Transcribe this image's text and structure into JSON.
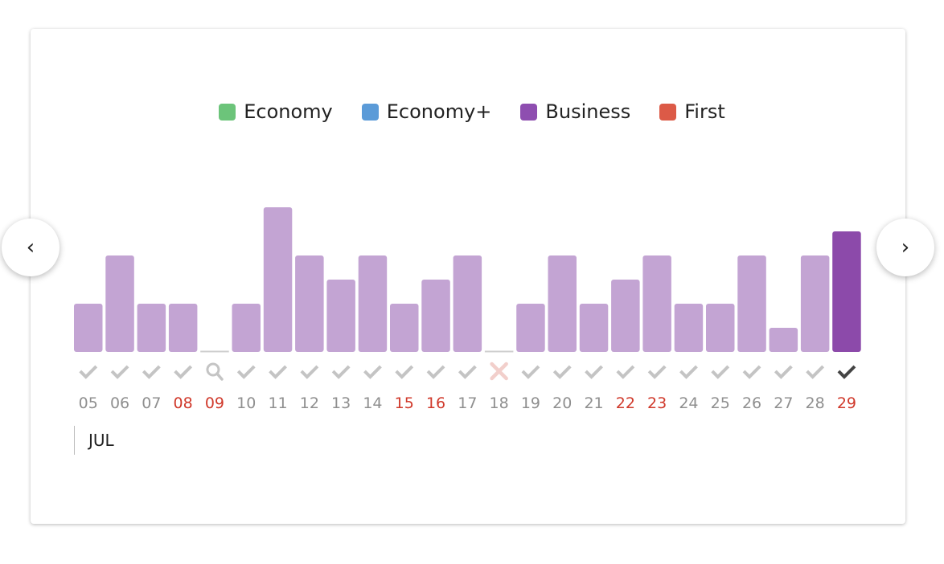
{
  "legend": [
    {
      "label": "Economy",
      "color": "#6cc47a"
    },
    {
      "label": "Economy+",
      "color": "#5b9bd8"
    },
    {
      "label": "Business",
      "color": "#8e4eb0"
    },
    {
      "label": "First",
      "color": "#dc5a47"
    }
  ],
  "nav": {
    "prev_icon": "chevron-left-icon",
    "next_icon": "chevron-right-icon",
    "prev_glyph": "‹",
    "next_glyph": "›"
  },
  "month_label": "JUL",
  "colors": {
    "bar": "#c3a4d3",
    "bar_selected": "#8c4aaa",
    "day_default": "#8f8f8f",
    "day_highlight": "#d0392b",
    "check": "#c4c4c4",
    "check_selected": "#444444",
    "cross": "#f2cfcb",
    "baseline": "#cfcfcf"
  },
  "chart_data": {
    "type": "bar",
    "categories": [
      "05",
      "06",
      "07",
      "08",
      "09",
      "10",
      "11",
      "12",
      "13",
      "14",
      "15",
      "16",
      "17",
      "18",
      "19",
      "20",
      "21",
      "22",
      "23",
      "24",
      "25",
      "26",
      "27",
      "28",
      "29"
    ],
    "values": [
      2,
      4,
      2,
      2,
      0,
      2,
      6,
      4,
      3,
      4,
      2,
      3,
      4,
      0,
      2,
      4,
      2,
      3,
      4,
      2,
      2,
      4,
      1,
      4,
      5
    ],
    "status": [
      "check",
      "check",
      "check",
      "check",
      "search",
      "check",
      "check",
      "check",
      "check",
      "check",
      "check",
      "check",
      "check",
      "cross",
      "check",
      "check",
      "check",
      "check",
      "check",
      "check",
      "check",
      "check",
      "check",
      "check",
      "check"
    ],
    "highlighted_days": [
      "08",
      "09",
      "15",
      "16",
      "22",
      "23",
      "29"
    ],
    "selected": "29",
    "ylim": [
      0,
      6
    ]
  }
}
